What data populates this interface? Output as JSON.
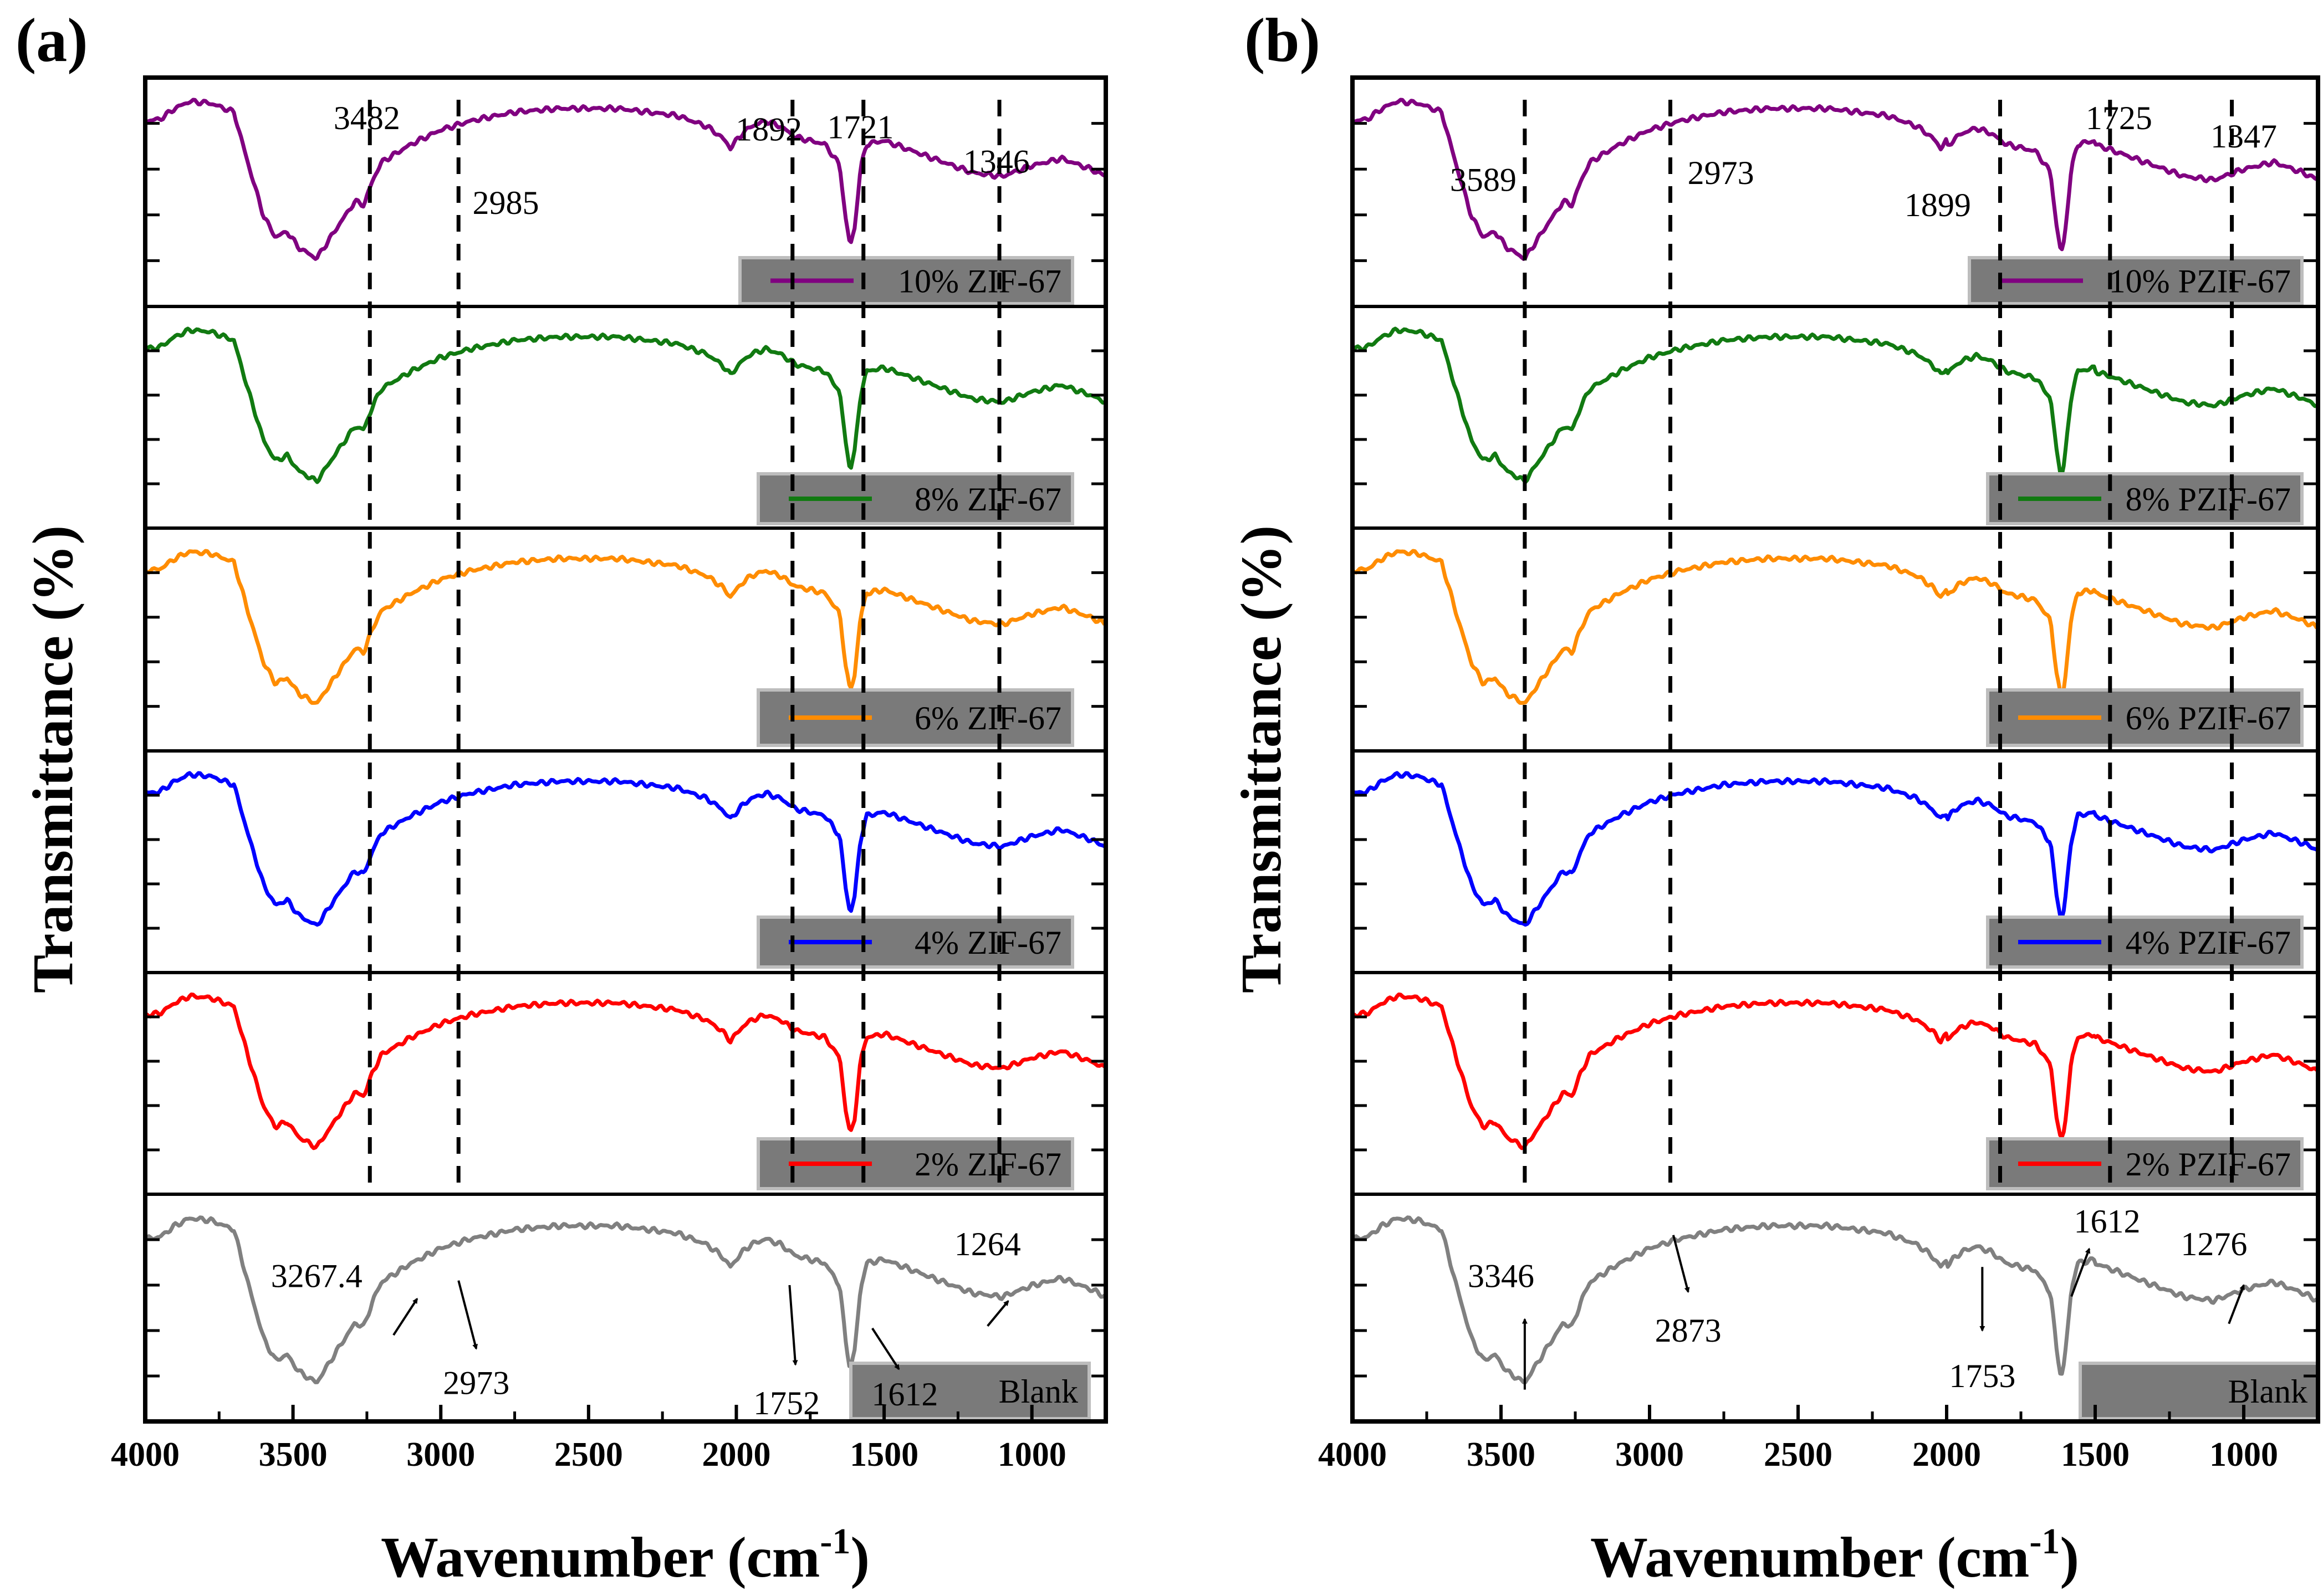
{
  "chart_data": [
    {
      "type": "line",
      "panel_label": "(a)",
      "xlabel": "Wavenumber (cm",
      "xlabel_sup": "-1",
      "xlabel_close": ")",
      "ylabel": "Transmittance (%)",
      "xlim": [
        4000,
        750
      ],
      "x_ticks": [
        "4000",
        "3500",
        "3000",
        "2500",
        "2000",
        "1500",
        "1000"
      ],
      "x_tick_values": [
        4000,
        3500,
        3000,
        2500,
        2000,
        1500,
        1000
      ],
      "grid": false,
      "dashed_lines_x": [
        3240,
        2940,
        1810,
        1570,
        1110
      ],
      "series": [
        {
          "name": "10% ZIF-67",
          "color": "#800080",
          "legend": "10% ZIF-67"
        },
        {
          "name": "8% ZIF-67",
          "color": "#117a11",
          "legend": "8% ZIF-67"
        },
        {
          "name": "6% ZIF-67",
          "color": "#ff8c00",
          "legend": "6% ZIF-67"
        },
        {
          "name": "4% ZIF-67",
          "color": "#0000ff",
          "legend": "4% ZIF-67"
        },
        {
          "name": "2% ZIF-67",
          "color": "#ff0000",
          "legend": "2% ZIF-67"
        },
        {
          "name": "Blank",
          "color": "#808080",
          "legend": "Blank"
        }
      ],
      "annotations_top": [
        {
          "text": "3482",
          "x": 3250,
          "y": 0.08
        },
        {
          "text": "2985",
          "x": 2780,
          "y": 0.45
        },
        {
          "text": "1892",
          "x": 1890,
          "y": 0.13
        },
        {
          "text": "1721",
          "x": 1580,
          "y": 0.12
        },
        {
          "text": "1346",
          "x": 1120,
          "y": 0.27
        }
      ],
      "annotations_blank": [
        {
          "text": "3267.4",
          "x": 3420,
          "y": 0.36,
          "arrow_from": [
            3160,
            0.62
          ],
          "arrow_to": [
            3080,
            0.46
          ]
        },
        {
          "text": "2973",
          "x": 2880,
          "y": 0.83,
          "arrow_from": [
            2940,
            0.38
          ],
          "arrow_to": [
            2880,
            0.68
          ]
        },
        {
          "text": "1752",
          "x": 1830,
          "y": 0.92,
          "arrow_from": [
            1820,
            0.4
          ],
          "arrow_to": [
            1800,
            0.75
          ]
        },
        {
          "text": "1612",
          "x": 1430,
          "y": 0.88,
          "arrow_from": [
            1540,
            0.59
          ],
          "arrow_to": [
            1450,
            0.77
          ]
        },
        {
          "text": "1264",
          "x": 1150,
          "y": 0.22,
          "arrow_from": [
            1150,
            0.58
          ],
          "arrow_to": [
            1080,
            0.47
          ]
        }
      ]
    },
    {
      "type": "line",
      "panel_label": "(b)",
      "xlabel": "Wavenumber (cm",
      "xlabel_sup": "-1",
      "xlabel_close": ")",
      "ylabel": "Transmittance (%)",
      "xlim": [
        4000,
        750
      ],
      "x_ticks": [
        "4000",
        "3500",
        "3000",
        "2500",
        "2000",
        "1500",
        "1000"
      ],
      "x_tick_values": [
        4000,
        3500,
        3000,
        2500,
        2000,
        1500,
        1000
      ],
      "grid": false,
      "dashed_lines_x": [
        3420,
        2930,
        1820,
        1450,
        1040
      ],
      "series": [
        {
          "name": "10% PZIF-67",
          "color": "#800080",
          "legend": "10% PZIF-67"
        },
        {
          "name": "8% PZIF-67",
          "color": "#117a11",
          "legend": "8% PZIF-67"
        },
        {
          "name": "6% PZIF-67",
          "color": "#ff8c00",
          "legend": "6% PZIF-67"
        },
        {
          "name": "4% PZIF-67",
          "color": "#0000ff",
          "legend": "4% PZIF-67"
        },
        {
          "name": "2% PZIF-67",
          "color": "#ff0000",
          "legend": "2% PZIF-67"
        },
        {
          "name": "Blank",
          "color": "#808080",
          "legend": "Blank"
        }
      ],
      "annotations_top": [
        {
          "text": "3589",
          "x": 3560,
          "y": 0.35
        },
        {
          "text": "2973",
          "x": 2760,
          "y": 0.32
        },
        {
          "text": "1899",
          "x": 2030,
          "y": 0.46
        },
        {
          "text": "1725",
          "x": 1420,
          "y": 0.08
        },
        {
          "text": "1347",
          "x": 1000,
          "y": 0.16
        }
      ],
      "annotations_blank": [
        {
          "text": "3346",
          "x": 3500,
          "y": 0.36,
          "arrow_from": [
            3420,
            0.86
          ],
          "arrow_to": [
            3420,
            0.55
          ]
        },
        {
          "text": "2873",
          "x": 2870,
          "y": 0.6,
          "arrow_from": [
            2920,
            0.18
          ],
          "arrow_to": [
            2870,
            0.43
          ]
        },
        {
          "text": "1753",
          "x": 1880,
          "y": 0.8,
          "arrow_from": [
            1880,
            0.32
          ],
          "arrow_to": [
            1880,
            0.6
          ],
          "large": true
        },
        {
          "text": "1612",
          "x": 1460,
          "y": 0.12,
          "arrow_from": [
            1580,
            0.45
          ],
          "arrow_to": [
            1520,
            0.24
          ]
        },
        {
          "text": "1276",
          "x": 1100,
          "y": 0.22,
          "arrow_from": [
            1050,
            0.57
          ],
          "arrow_to": [
            1000,
            0.4
          ]
        }
      ]
    }
  ]
}
